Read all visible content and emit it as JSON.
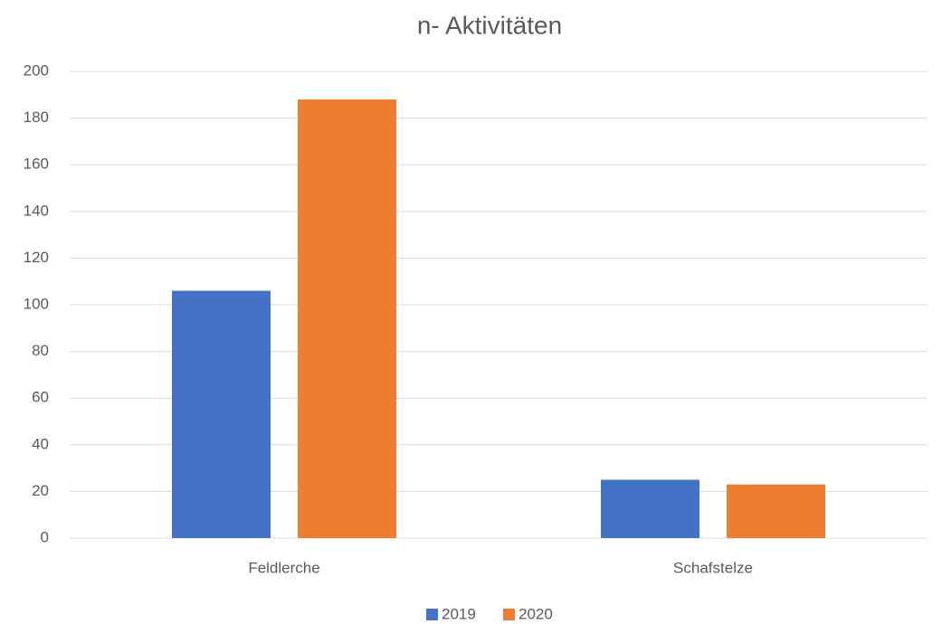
{
  "chart_data": {
    "type": "bar",
    "title": "n- Aktivitäten",
    "categories": [
      "Feldlerche",
      "Schafstelze"
    ],
    "series": [
      {
        "name": "2019",
        "color": "#4472c4",
        "values": [
          106,
          25
        ]
      },
      {
        "name": "2020",
        "color": "#ed7d31",
        "values": [
          188,
          23
        ]
      }
    ],
    "ylim": [
      0,
      200
    ],
    "yticks": [
      0,
      20,
      40,
      60,
      80,
      100,
      120,
      140,
      160,
      180,
      200
    ],
    "grid": true,
    "legend": "bottom"
  }
}
